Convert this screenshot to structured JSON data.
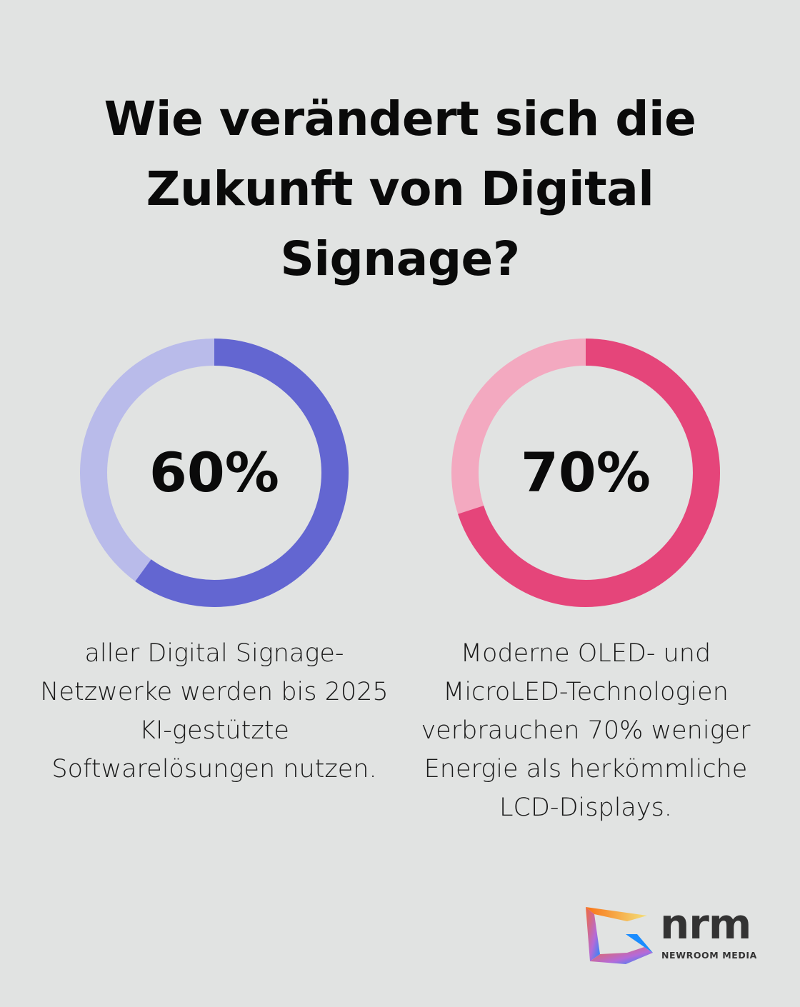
{
  "title": "Wie verändert sich die Zukunft von Digital Signage?",
  "chart_data": [
    {
      "type": "pie",
      "variant": "donut",
      "values": [
        60,
        40
      ],
      "label": "60%",
      "description": "aller Digital Signage-Netzwerke werden bis 2025 KI-gestützte Softwarelösungen nutzen.",
      "colors": {
        "value": "#6366d1",
        "rest": "#b9bbea"
      }
    },
    {
      "type": "pie",
      "variant": "donut",
      "values": [
        70,
        30
      ],
      "label": "70%",
      "description": "Moderne OLED- und MicroLED-Technologien verbrauchen 70% weniger Energie als herkömmliche LCD-Displays.",
      "colors": {
        "value": "#e5457a",
        "rest": "#f3a9c0"
      }
    }
  ],
  "logo": {
    "name": "nrm",
    "subtitle": "NEWROOM MEDIA"
  }
}
